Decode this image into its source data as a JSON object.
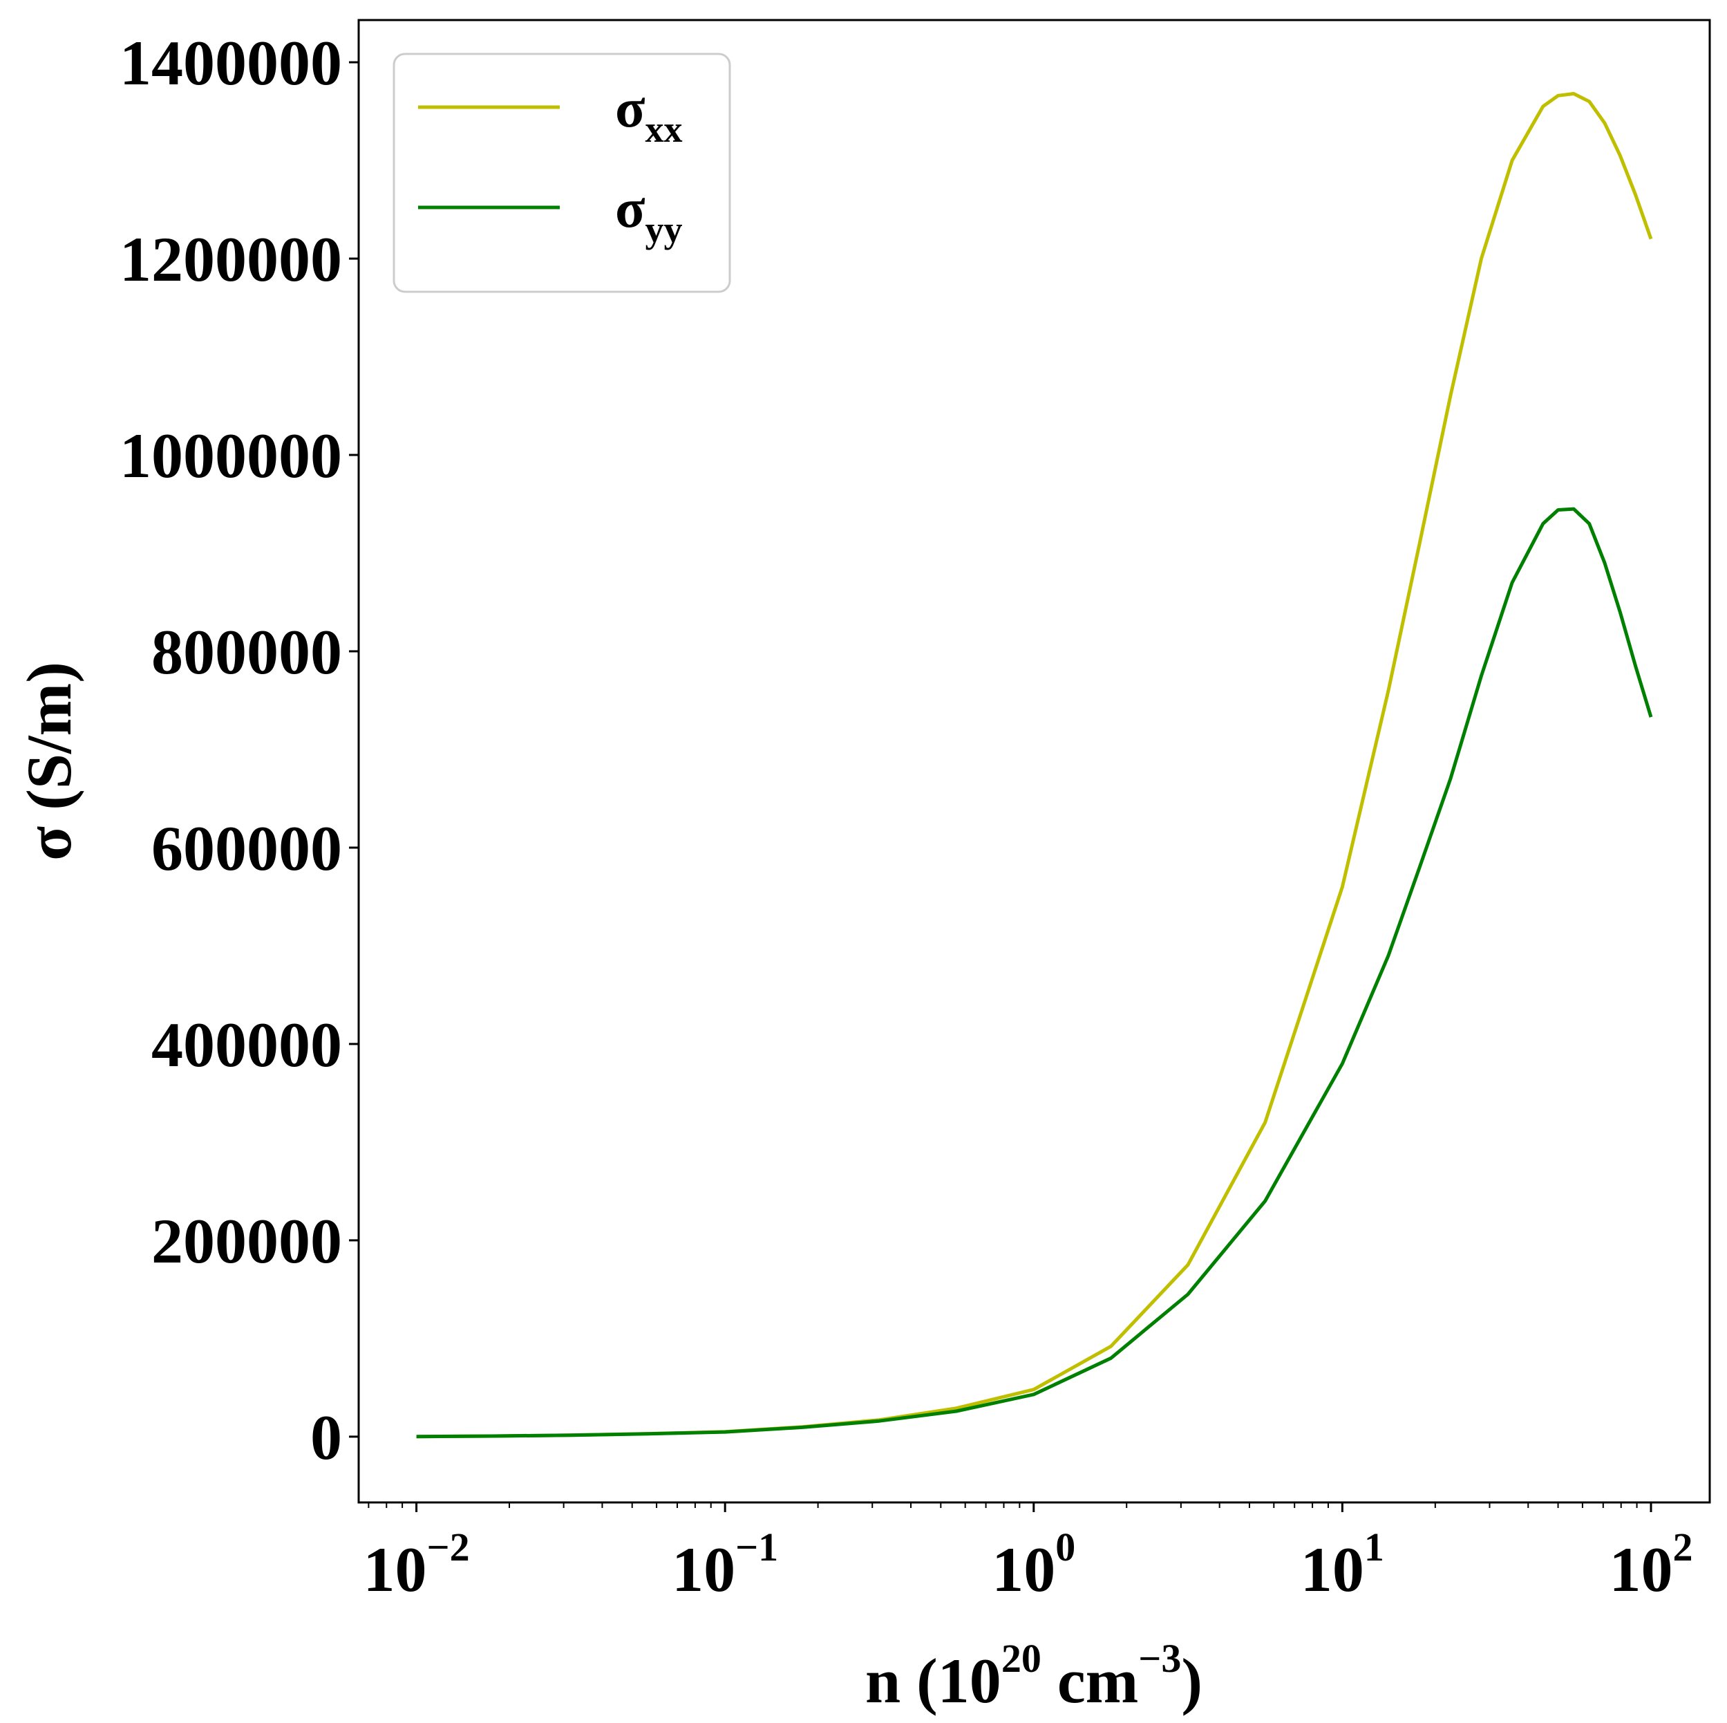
{
  "chart_data": {
    "type": "line",
    "xscale": "log",
    "xlim": [
      0.0065,
      155
    ],
    "ylim": [
      -67000,
      1443000
    ],
    "xlabel": {
      "base": "n (10",
      "sup1": "20",
      "mid": " cm",
      "sup2": "−3",
      "end": ")"
    },
    "ylabel": "σ (S/m)",
    "y_ticks": [
      {
        "value": 0,
        "label": "0"
      },
      {
        "value": 200000,
        "label": "200000"
      },
      {
        "value": 400000,
        "label": "400000"
      },
      {
        "value": 600000,
        "label": "600000"
      },
      {
        "value": 800000,
        "label": "800000"
      },
      {
        "value": 1000000,
        "label": "1000000"
      },
      {
        "value": 1200000,
        "label": "1200000"
      },
      {
        "value": 1400000,
        "label": "1400000"
      }
    ],
    "x_ticks": [
      {
        "value": 0.01,
        "base": "10",
        "exp": "−2"
      },
      {
        "value": 0.1,
        "base": "10",
        "exp": "−1"
      },
      {
        "value": 1,
        "base": "10",
        "exp": "0"
      },
      {
        "value": 10,
        "base": "10",
        "exp": "1"
      },
      {
        "value": 100,
        "base": "10",
        "exp": "2"
      }
    ],
    "grid": false,
    "legend_position": "top-left",
    "series": [
      {
        "name": "σ",
        "subscript": "xx",
        "color": "#bfbf00",
        "x": [
          0.01,
          0.0178,
          0.0316,
          0.0562,
          0.1,
          0.178,
          0.316,
          0.562,
          1,
          1.78,
          3.16,
          5.62,
          10,
          14.1,
          17.8,
          22.4,
          28.2,
          35.5,
          44.7,
          50,
          56.2,
          63.1,
          70.8,
          79.4,
          89.1,
          100
        ],
        "y": [
          100,
          600,
          1500,
          3000,
          5000,
          10000,
          17000,
          29000,
          48000,
          92000,
          175000,
          320000,
          560000,
          760000,
          910000,
          1060000,
          1200000,
          1300000,
          1355000,
          1366000,
          1368000,
          1360000,
          1338000,
          1305000,
          1265000,
          1220000
        ]
      },
      {
        "name": "σ",
        "subscript": "yy",
        "color": "#008000",
        "x": [
          0.01,
          0.0178,
          0.0316,
          0.0562,
          0.1,
          0.178,
          0.316,
          0.562,
          1,
          1.78,
          3.16,
          5.62,
          10,
          14.1,
          17.8,
          22.4,
          28.2,
          35.5,
          44.7,
          50,
          56.2,
          63.1,
          70.8,
          79.4,
          89.1,
          100
        ],
        "y": [
          100,
          600,
          1500,
          2900,
          4800,
          9500,
          16000,
          26000,
          43000,
          80000,
          145000,
          240000,
          380000,
          490000,
          580000,
          670000,
          775000,
          870000,
          930000,
          944000,
          945000,
          930000,
          890000,
          840000,
          785000,
          733000
        ]
      }
    ]
  }
}
